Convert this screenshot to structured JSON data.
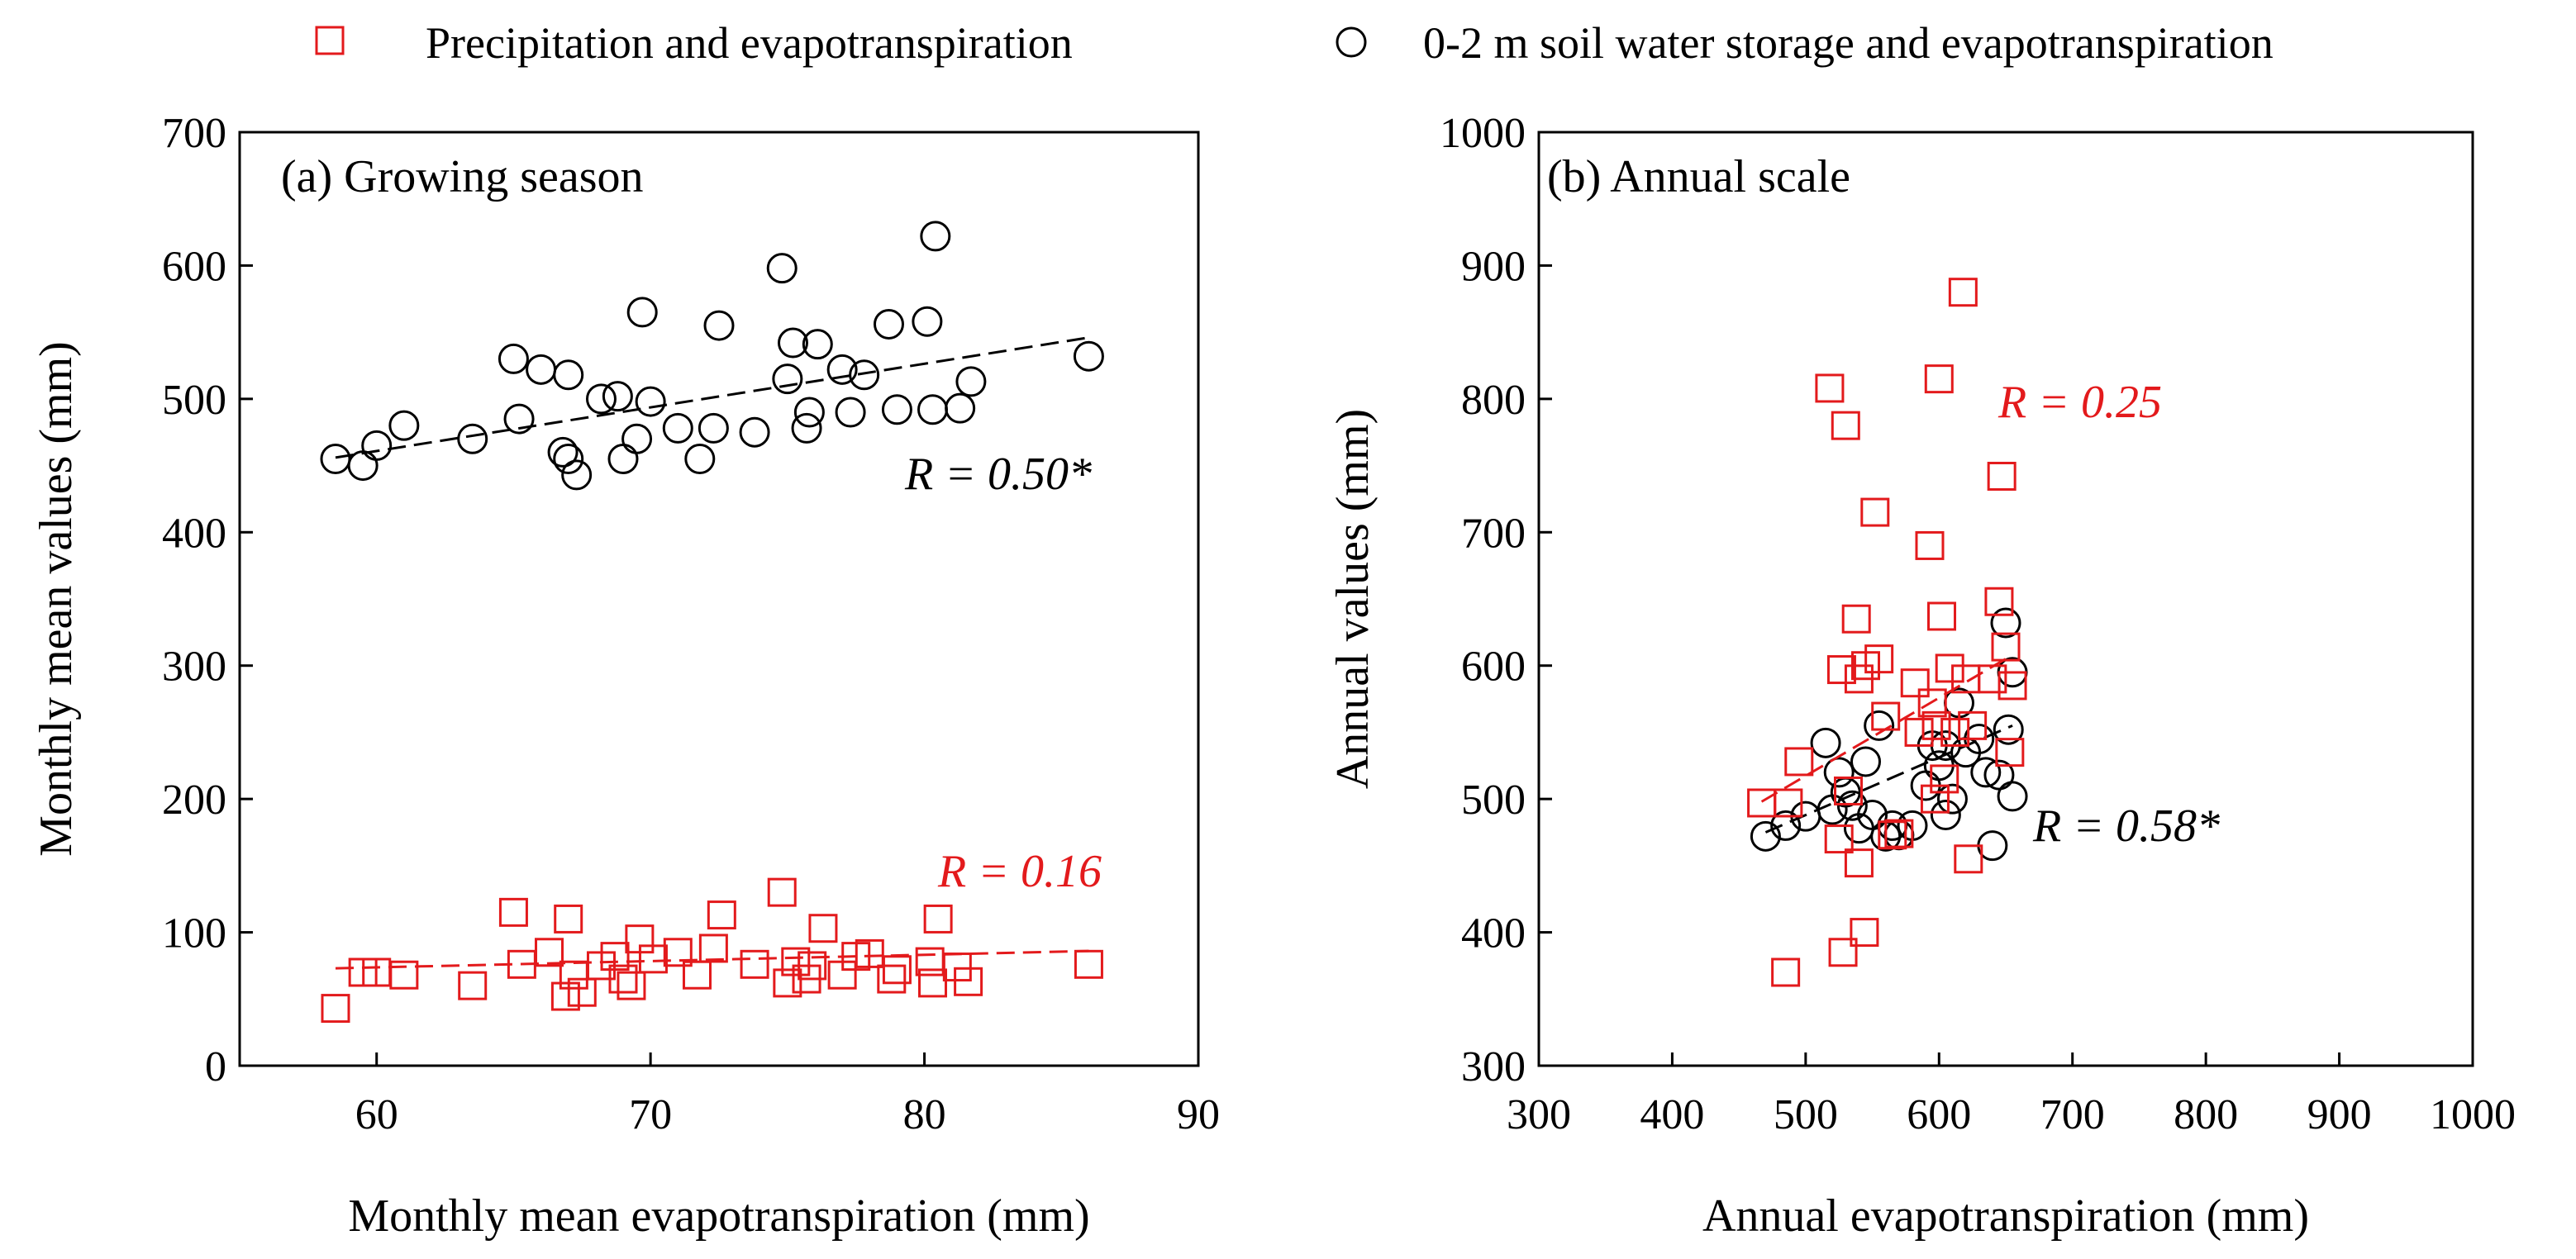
{
  "legend": {
    "items": [
      {
        "label": "Precipitation and evapotranspiration",
        "marker": "square",
        "color": "#e31a1c"
      },
      {
        "label": "0-2 m soil water storage and evapotranspiration",
        "marker": "circle",
        "color": "#000000"
      }
    ]
  },
  "colors": {
    "precip": "#e31a1c",
    "soil": "#000000"
  },
  "chart_data": [
    {
      "type": "scatter",
      "title": "(a)  Growing season",
      "xlabel": "Monthly mean evapotranspiration (mm)",
      "ylabel": "Monthly mean values (mm)",
      "xlim": [
        55,
        90
      ],
      "ylim": [
        0,
        700
      ],
      "xticks": [
        60,
        70,
        80,
        90
      ],
      "yticks": [
        0,
        100,
        200,
        300,
        400,
        500,
        600,
        700
      ],
      "series": [
        {
          "name": "0-2 m soil water storage and evapotranspiration",
          "marker": "circle",
          "points": [
            [
              58.5,
              455
            ],
            [
              59.5,
              450
            ],
            [
              60,
              465
            ],
            [
              61,
              480
            ],
            [
              63.5,
              470
            ],
            [
              65,
              530
            ],
            [
              65.2,
              485
            ],
            [
              66,
              522
            ],
            [
              67,
              518
            ],
            [
              66.8,
              460
            ],
            [
              67,
              455
            ],
            [
              67.3,
              443
            ],
            [
              68.2,
              500
            ],
            [
              68.8,
              502
            ],
            [
              69,
              455
            ],
            [
              69.5,
              470
            ],
            [
              69.7,
              565
            ],
            [
              70,
              498
            ],
            [
              71,
              478
            ],
            [
              71.8,
              455
            ],
            [
              72.3,
              478
            ],
            [
              72.5,
              555
            ],
            [
              73.8,
              475
            ],
            [
              74.8,
              598
            ],
            [
              75,
              515
            ],
            [
              75.2,
              542
            ],
            [
              75.7,
              478
            ],
            [
              75.8,
              490
            ],
            [
              76.1,
              541
            ],
            [
              77,
              522
            ],
            [
              77.3,
              490
            ],
            [
              77.8,
              518
            ],
            [
              78.7,
              556
            ],
            [
              79,
              492
            ],
            [
              80.1,
              558
            ],
            [
              80.3,
              492
            ],
            [
              80.4,
              622
            ],
            [
              81.3,
              493
            ],
            [
              81.7,
              513
            ],
            [
              86,
              532
            ]
          ],
          "fit": {
            "x": [
              58.5,
              86
            ],
            "y": [
              456,
              546
            ]
          },
          "r_label": "R = 0.50*"
        },
        {
          "name": "Precipitation and evapotranspiration",
          "marker": "square",
          "points": [
            [
              58.5,
              43
            ],
            [
              59.5,
              70
            ],
            [
              60,
              70
            ],
            [
              61,
              68
            ],
            [
              63.5,
              60
            ],
            [
              65,
              115
            ],
            [
              65.3,
              76
            ],
            [
              66.3,
              85
            ],
            [
              67,
              110
            ],
            [
              66.9,
              52
            ],
            [
              67.2,
              68
            ],
            [
              67.5,
              55
            ],
            [
              68.2,
              75
            ],
            [
              68.7,
              82
            ],
            [
              69,
              65
            ],
            [
              69.3,
              60
            ],
            [
              69.6,
              95
            ],
            [
              70.1,
              80
            ],
            [
              71,
              85
            ],
            [
              71.7,
              68
            ],
            [
              72.3,
              88
            ],
            [
              72.6,
              113
            ],
            [
              73.8,
              76
            ],
            [
              74.8,
              130
            ],
            [
              75,
              62
            ],
            [
              75.3,
              78
            ],
            [
              75.7,
              65
            ],
            [
              75.9,
              75
            ],
            [
              76.3,
              103
            ],
            [
              77,
              68
            ],
            [
              77.5,
              82
            ],
            [
              78,
              84
            ],
            [
              78.8,
              65
            ],
            [
              79,
              72
            ],
            [
              80.2,
              78
            ],
            [
              80.3,
              62
            ],
            [
              80.5,
              110
            ],
            [
              81.2,
              74
            ],
            [
              81.6,
              63
            ],
            [
              86,
              76
            ]
          ],
          "fit": {
            "x": [
              58.5,
              86
            ],
            "y": [
              73,
              86
            ]
          },
          "r_label": "R = 0.16"
        }
      ]
    },
    {
      "type": "scatter",
      "title": "(b) Annual scale",
      "xlabel": "Annual evapotranspiration (mm)",
      "ylabel": "Annual values (mm)",
      "xlim": [
        300,
        1000
      ],
      "ylim": [
        300,
        1000
      ],
      "xticks": [
        300,
        400,
        500,
        600,
        700,
        800,
        900,
        1000
      ],
      "yticks": [
        300,
        400,
        500,
        600,
        700,
        800,
        900,
        1000
      ],
      "series": [
        {
          "name": "0-2 m soil water storage and evapotranspiration",
          "marker": "circle",
          "points": [
            [
              470,
              472
            ],
            [
              485,
              480
            ],
            [
              500,
              487
            ],
            [
              515,
              542
            ],
            [
              520,
              492
            ],
            [
              525,
              520
            ],
            [
              530,
              505
            ],
            [
              535,
              495
            ],
            [
              540,
              478
            ],
            [
              545,
              528
            ],
            [
              550,
              488
            ],
            [
              555,
              555
            ],
            [
              560,
              472
            ],
            [
              565,
              480
            ],
            [
              570,
              473
            ],
            [
              580,
              480
            ],
            [
              590,
              510
            ],
            [
              595,
              540
            ],
            [
              600,
              525
            ],
            [
              605,
              540
            ],
            [
              605,
              488
            ],
            [
              610,
              500
            ],
            [
              615,
              572
            ],
            [
              620,
              535
            ],
            [
              630,
              545
            ],
            [
              635,
              520
            ],
            [
              640,
              465
            ],
            [
              645,
              518
            ],
            [
              650,
              632
            ],
            [
              652,
              552
            ],
            [
              655,
              595
            ],
            [
              655,
              502
            ]
          ],
          "fit": {
            "x": [
              470,
              655
            ],
            "y": [
              475,
              555
            ]
          },
          "r_label": "R = 0.58*"
        },
        {
          "name": "Precipitation and evapotranspiration",
          "marker": "square",
          "points": [
            [
              467,
              497
            ],
            [
              485,
              370
            ],
            [
              487,
              497
            ],
            [
              495,
              528
            ],
            [
              518,
              808
            ],
            [
              525,
              470
            ],
            [
              527,
              597
            ],
            [
              528,
              385
            ],
            [
              530,
              780
            ],
            [
              532,
              506
            ],
            [
              538,
              635
            ],
            [
              540,
              452
            ],
            [
              540,
              590
            ],
            [
              544,
              400
            ],
            [
              545,
              600
            ],
            [
              552,
              715
            ],
            [
              555,
              605
            ],
            [
              560,
              562
            ],
            [
              565,
              473
            ],
            [
              570,
              474
            ],
            [
              582,
              587
            ],
            [
              585,
              550
            ],
            [
              593,
              690
            ],
            [
              595,
              572
            ],
            [
              597,
              500
            ],
            [
              598,
              555
            ],
            [
              600,
              815
            ],
            [
              602,
              637
            ],
            [
              604,
              515
            ],
            [
              608,
              598
            ],
            [
              612,
              550
            ],
            [
              618,
              880
            ],
            [
              620,
              590
            ],
            [
              622,
              455
            ],
            [
              625,
              555
            ],
            [
              640,
              590
            ],
            [
              645,
              648
            ],
            [
              647,
              742
            ],
            [
              650,
              614
            ],
            [
              653,
              535
            ],
            [
              655,
              585
            ]
          ],
          "fit": {
            "x": [
              467,
              655
            ],
            "y": [
              498,
              608
            ]
          },
          "r_label": "R = 0.25"
        }
      ]
    }
  ]
}
